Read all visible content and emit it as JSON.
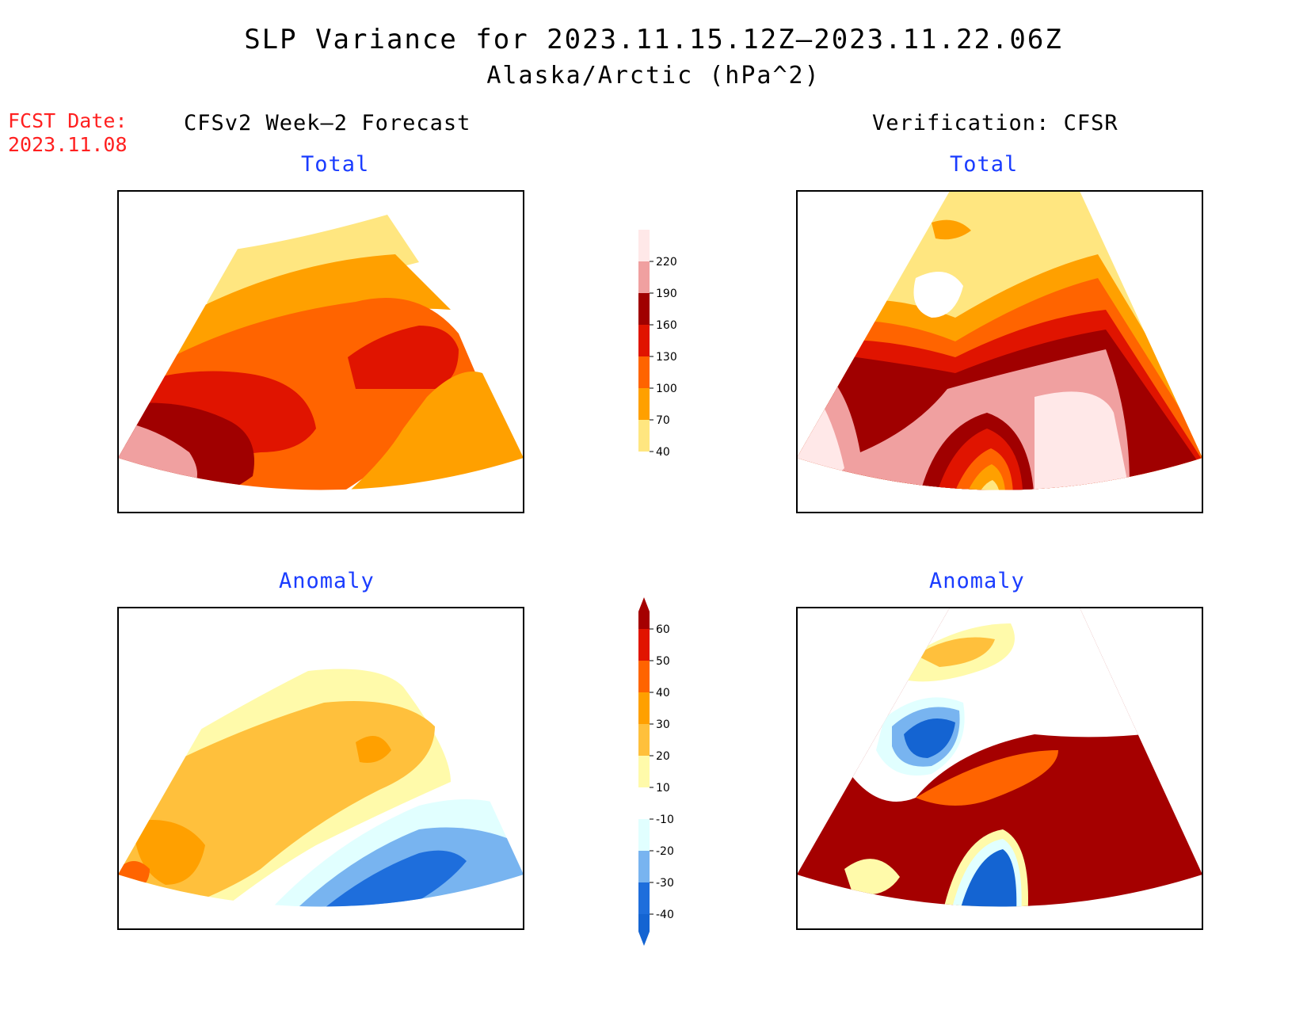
{
  "title": "SLP Variance for 2023.11.15.12Z—2023.11.22.06Z",
  "subtitle": "Alaska/Arctic (hPa^2)",
  "fcst_label": "FCST Date:",
  "fcst_date": "2023.11.08",
  "columns": {
    "left": "CFSv2 Week—2 Forecast",
    "right": "Verification: CFSR"
  },
  "panels": {
    "top_left": "Total",
    "top_right": "Total",
    "bottom_left": "Anomaly",
    "bottom_right": "Anomaly"
  },
  "colorbars": {
    "total": {
      "labels": [
        "40",
        "70",
        "100",
        "130",
        "160",
        "190",
        "220"
      ],
      "colors": [
        "#ffe680",
        "#ffa000",
        "#ff6400",
        "#e01400",
        "#a00000",
        "#f0a0a0",
        "#ffe8e8"
      ]
    },
    "anomaly": {
      "labels": [
        "-40",
        "-30",
        "-20",
        "-10",
        "10",
        "20",
        "30",
        "40",
        "50",
        "60"
      ],
      "colors": [
        "#1464d2",
        "#1e6edc",
        "#78b4f0",
        "#e1ffff",
        "#ffffff",
        "#fffaaa",
        "#ffc03c",
        "#ffa000",
        "#ff6400",
        "#e11400",
        "#a50000"
      ]
    }
  },
  "palette": {
    "map_border": "#000000",
    "coast": "#000000",
    "grid": "#999999"
  }
}
